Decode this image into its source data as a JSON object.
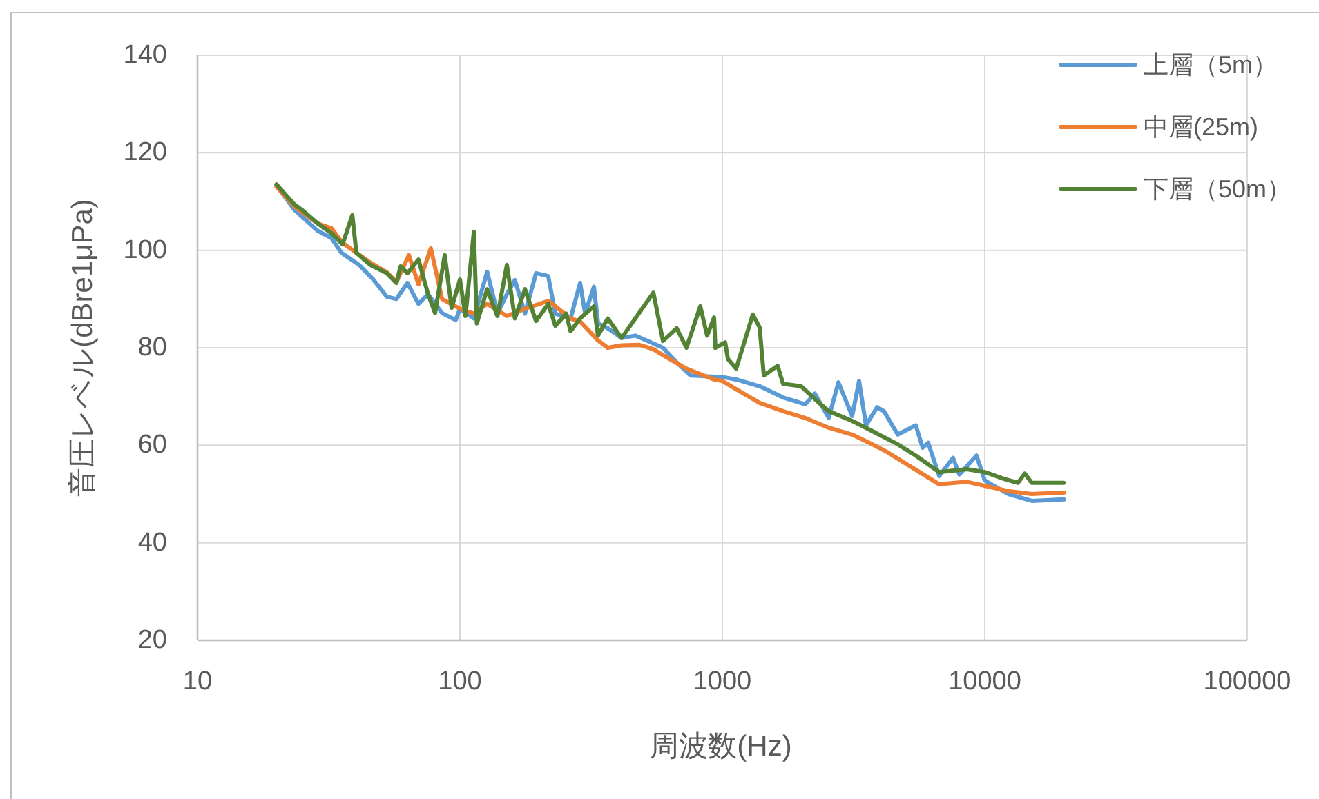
{
  "chart_data": {
    "type": "line",
    "xlabel": "周波数(Hz)",
    "ylabel": "音圧レベル(dBre1μPa)",
    "log": "x",
    "xlim": [
      10,
      100000
    ],
    "xticks": [
      10,
      100,
      1000,
      10000,
      100000
    ],
    "ylim": [
      20,
      140
    ],
    "yticks": [
      20,
      40,
      60,
      80,
      100,
      120,
      140
    ],
    "grid": true,
    "legend": "top right",
    "series": [
      {
        "name": "上層（5m）",
        "color": "#5b9bd5",
        "x": [
          20,
          23.4,
          28.7,
          32.4,
          35.3,
          41.3,
          46.6,
          52.6,
          57.3,
          63.1,
          69.5,
          75.6,
          85.5,
          96.4,
          100,
          113,
          127,
          139,
          151,
          162,
          177,
          195,
          217,
          231,
          264,
          287,
          300,
          324,
          336,
          366,
          413,
          466,
          594,
          670,
          757,
          1000,
          1129,
          1387,
          1704,
          2069,
          2252,
          2543,
          2768,
          3124,
          3319,
          3527,
          3886,
          4129,
          4660,
          5456,
          5800,
          6084,
          6705,
          7565,
          8000,
          9299,
          10000,
          12290,
          15100,
          20000
        ],
        "values": [
          113.3,
          108.3,
          104,
          102.5,
          99.5,
          97,
          94.1,
          90.5,
          90,
          93.3,
          89,
          91,
          87.1,
          85.7,
          88,
          86,
          95.6,
          87,
          91,
          93.9,
          87,
          95.3,
          94.7,
          87,
          86,
          93.3,
          87,
          92.5,
          85,
          84,
          82,
          82.5,
          80,
          77,
          74.3,
          74,
          73.5,
          72.1,
          69.8,
          68.4,
          70.6,
          65.6,
          72.9,
          66,
          73.2,
          64.1,
          67.8,
          67,
          62.2,
          64.1,
          59.5,
          60.5,
          53.7,
          57.4,
          54,
          57.9,
          52.8,
          50,
          48.6,
          48.9
        ]
      },
      {
        "name": "中層(25m)",
        "color": "#ed7d31",
        "x": [
          20,
          23.4,
          28.7,
          32.4,
          35.7,
          40.3,
          45.5,
          52.6,
          57.3,
          63.9,
          69.5,
          77.5,
          85.5,
          100,
          113,
          127,
          151,
          177,
          217,
          231,
          264,
          287,
          336,
          366,
          413,
          483,
          546,
          594,
          730,
          930,
          1000,
          1129,
          1387,
          1704,
          2069,
          2543,
          3124,
          3793,
          4280,
          5262,
          6705,
          8545,
          10000,
          12290,
          15100,
          20000
        ],
        "values": [
          113,
          109,
          105.5,
          104.5,
          101.5,
          99.5,
          97.5,
          95.5,
          93.5,
          99,
          93,
          100.4,
          90,
          88,
          87,
          89,
          86.5,
          88,
          89.6,
          88.5,
          86,
          85.4,
          81.5,
          80,
          80.5,
          80.6,
          79.7,
          78.5,
          75.7,
          73.5,
          73.2,
          71.5,
          68.7,
          67,
          65.6,
          63.6,
          62.2,
          60,
          58.5,
          55.5,
          52,
          52.5,
          51.7,
          50.6,
          50,
          50.3
        ]
      },
      {
        "name": "下層（50m）",
        "color": "#548235",
        "x": [
          20,
          22,
          23.4,
          25.4,
          28.7,
          32.4,
          35.7,
          38.9,
          40.3,
          45.5,
          52.6,
          57.3,
          59.4,
          63.1,
          69.5,
          75.6,
          80.4,
          87.5,
          93,
          100,
          105,
          113,
          116,
          127,
          139,
          151,
          162,
          177,
          195,
          217,
          231,
          254,
          264,
          287,
          324,
          336,
          366,
          413,
          466,
          546,
          594,
          670,
          730,
          824,
          875,
          930,
          941,
          1025,
          1050,
          1129,
          1306,
          1387,
          1439,
          1624,
          1704,
          1995,
          2336,
          2543,
          3124,
          3793,
          4660,
          5456,
          6705,
          8545,
          10000,
          11850,
          13380,
          14210,
          15100,
          20000
        ],
        "values": [
          113.5,
          111,
          109.4,
          108,
          105.5,
          103.5,
          101.2,
          107.2,
          99.5,
          97,
          95.3,
          93.3,
          96.7,
          95.3,
          98.1,
          91,
          87.1,
          99,
          88.2,
          94,
          86.5,
          103.8,
          85,
          92,
          86.5,
          97,
          86,
          92,
          85.5,
          89,
          84.5,
          87,
          83.4,
          86,
          88.5,
          82.5,
          86,
          82,
          86,
          91.3,
          81.4,
          84,
          80,
          88.5,
          82.5,
          86.2,
          80,
          81.1,
          77.7,
          75.7,
          86.8,
          84.2,
          74.3,
          76.3,
          72.6,
          72.1,
          68.7,
          67,
          65,
          62.7,
          60.2,
          57.9,
          54.5,
          55.1,
          54.5,
          53.1,
          52.3,
          54.2,
          52.3,
          52.3
        ]
      }
    ]
  }
}
